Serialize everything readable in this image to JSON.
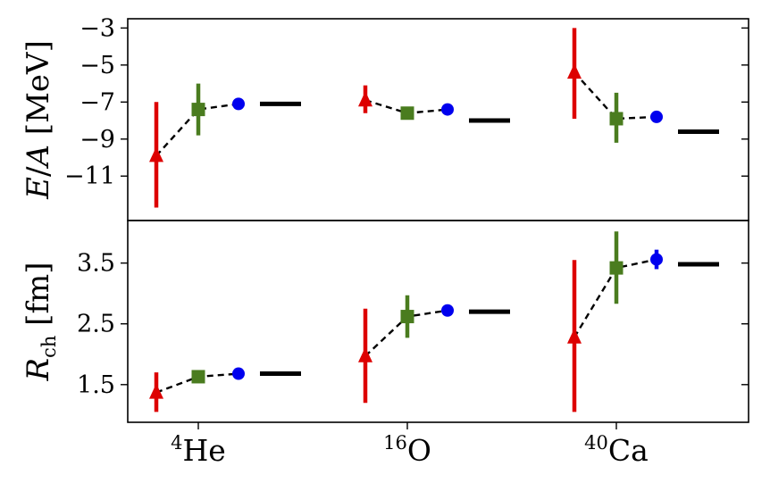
{
  "chart_data": [
    {
      "type": "scatter",
      "panel": "top",
      "ylabel": "E/A [MeV]",
      "ylim": [
        -13.4,
        -2.5
      ],
      "yticks": [
        -3,
        -5,
        -7,
        -9,
        -11
      ],
      "ytick_labels": [
        "−3",
        "−5",
        "−7",
        "−9",
        "−11"
      ],
      "categories": [
        "4He",
        "16O",
        "40Ca"
      ],
      "series": [
        {
          "marker": "triangle",
          "color": "#dd0000",
          "connected": true,
          "values": [
            -9.9,
            -6.9,
            -5.4
          ],
          "err_low": [
            -12.7,
            -7.6,
            -7.9
          ],
          "err_high": [
            -7.0,
            -6.1,
            -3.0
          ]
        },
        {
          "marker": "square",
          "color": "#4a7c1f",
          "connected": true,
          "values": [
            -7.4,
            -7.6,
            -7.9
          ],
          "err_low": [
            -8.8,
            -7.9,
            -9.2
          ],
          "err_high": [
            -6.0,
            -7.3,
            -6.5
          ]
        },
        {
          "marker": "circle",
          "color": "#0000ee",
          "connected": true,
          "values": [
            -7.1,
            -7.4,
            -7.8
          ],
          "err_low": [
            -7.3,
            -7.5,
            -7.9
          ],
          "err_high": [
            -6.9,
            -7.3,
            -7.7
          ]
        },
        {
          "marker": "hline",
          "color": "#000000",
          "connected": false,
          "values": [
            -7.1,
            -8.0,
            -8.6
          ]
        }
      ]
    },
    {
      "type": "scatter",
      "panel": "bottom",
      "ylabel": "R_ch [fm]",
      "ylim": [
        0.88,
        4.2
      ],
      "yticks": [
        1.5,
        2.5,
        3.5
      ],
      "ytick_labels": [
        "1.5",
        "2.5",
        "3.5"
      ],
      "categories": [
        "4He",
        "16O",
        "40Ca"
      ],
      "series": [
        {
          "marker": "triangle",
          "color": "#dd0000",
          "connected": true,
          "values": [
            1.37,
            1.97,
            2.28
          ],
          "err_low": [
            1.05,
            1.2,
            1.05
          ],
          "err_high": [
            1.7,
            2.75,
            3.55
          ]
        },
        {
          "marker": "square",
          "color": "#4a7c1f",
          "connected": true,
          "values": [
            1.63,
            2.62,
            3.42
          ],
          "err_low": [
            1.55,
            2.27,
            2.83
          ],
          "err_high": [
            1.71,
            2.97,
            4.02
          ]
        },
        {
          "marker": "circle",
          "color": "#0000ee",
          "connected": true,
          "values": [
            1.68,
            2.72,
            3.56
          ],
          "err_low": [
            1.66,
            2.7,
            3.4
          ],
          "err_high": [
            1.7,
            2.74,
            3.72
          ]
        },
        {
          "marker": "hline",
          "color": "#000000",
          "connected": false,
          "values": [
            1.68,
            2.7,
            3.48
          ]
        }
      ]
    }
  ],
  "x_labels": [
    {
      "sup": "4",
      "base": "He"
    },
    {
      "sup": "16",
      "base": "O"
    },
    {
      "sup": "40",
      "base": "Ca"
    }
  ]
}
